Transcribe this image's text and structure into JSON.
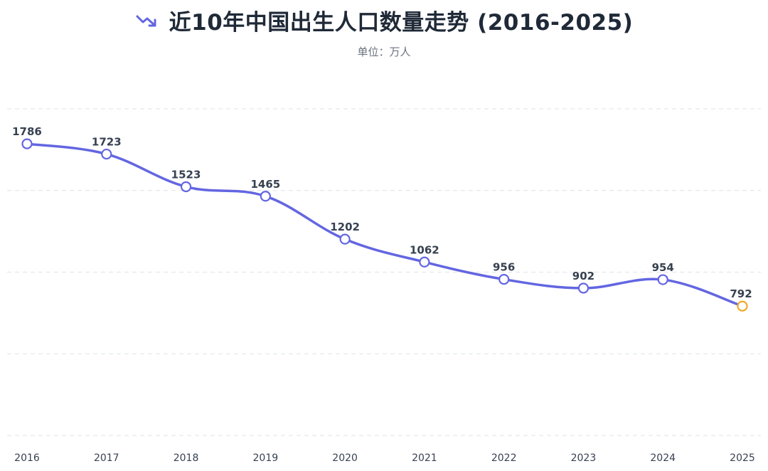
{
  "header": {
    "title": "近10年中国出生人口数量走势 (2016-2025)",
    "subtitle": "单位：万人",
    "icon": "trend-down-icon"
  },
  "colors": {
    "line": "#6366e1",
    "point_fill": "#ffffff",
    "highlight_point": "#f0a92a",
    "gridline": "#e5e7eb",
    "text": "#374151"
  },
  "chart_data": {
    "type": "line",
    "title": "近10年中国出生人口数量走势 (2016-2025)",
    "subtitle": "单位：万人",
    "xlabel": "",
    "ylabel": "",
    "categories": [
      "2016",
      "2017",
      "2018",
      "2019",
      "2020",
      "2021",
      "2022",
      "2023",
      "2024",
      "2025"
    ],
    "series": [
      {
        "values": [
          1786,
          1723,
          1523,
          1465,
          1202,
          1062,
          956,
          902,
          954,
          792
        ]
      }
    ],
    "data_labels": [
      "1786",
      "1723",
      "1523",
      "1465",
      "1202",
      "1062",
      "956",
      "902",
      "954",
      "792"
    ],
    "highlight_index": 9,
    "ylim": [
      0,
      2000
    ],
    "y_gridlines": [
      0,
      500,
      1000,
      1500,
      2000
    ],
    "grid": true,
    "grid_style": "dashed-horizontal",
    "smooth": true,
    "legend": "none"
  }
}
